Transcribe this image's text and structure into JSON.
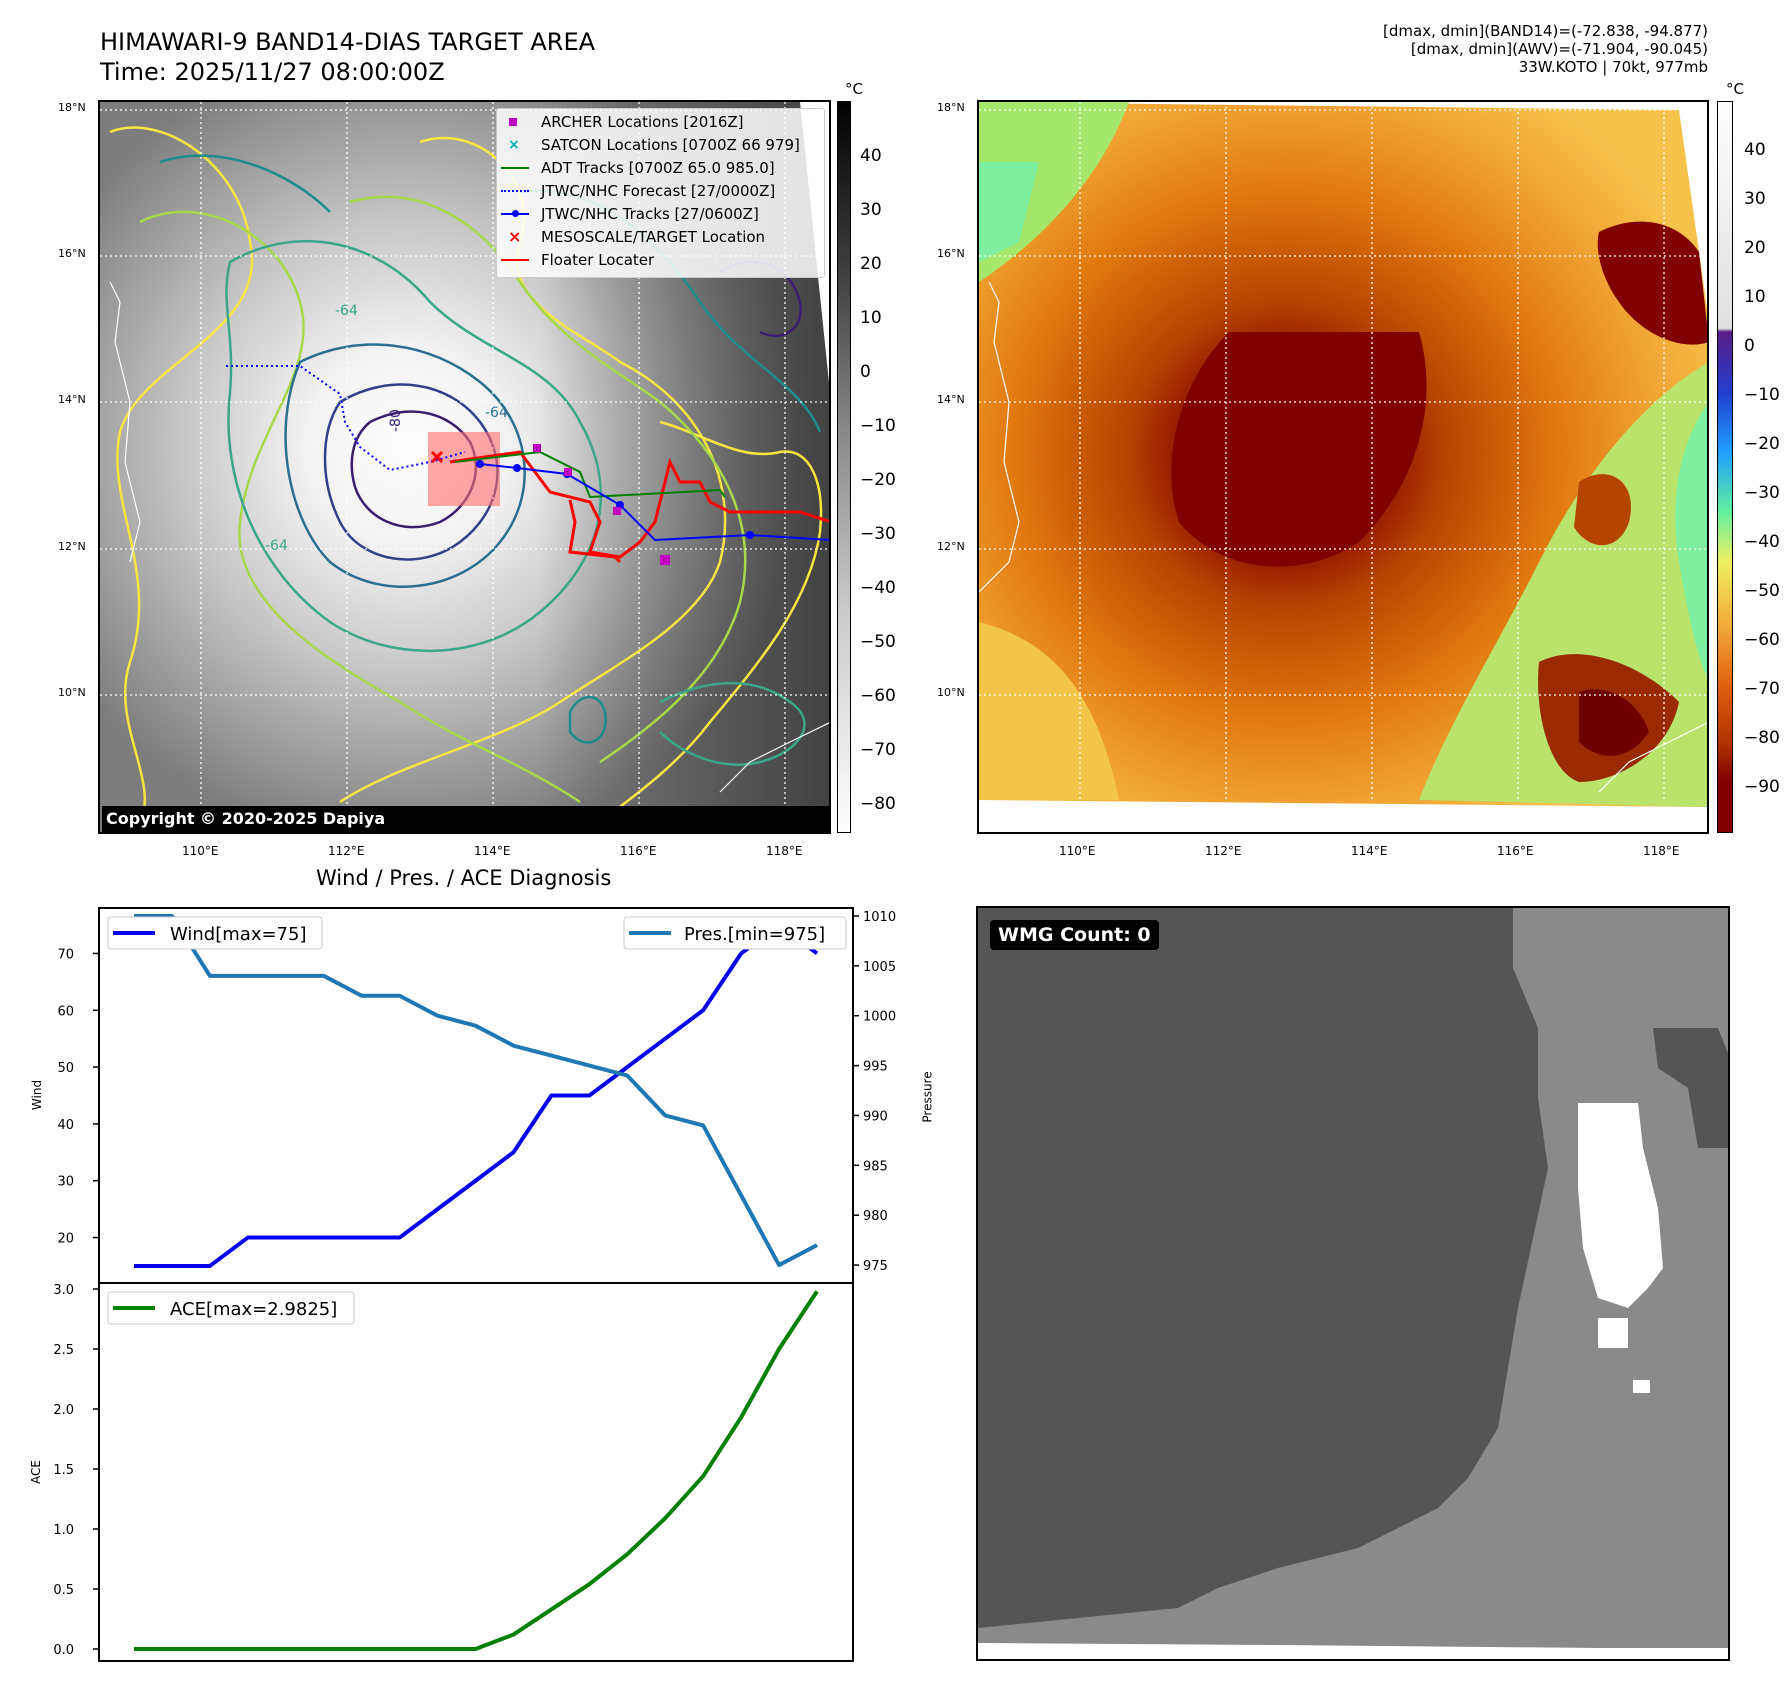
{
  "header": {
    "title_line1": "HIMAWARI-9 BAND14-DIAS TARGET AREA",
    "title_line2": "Time: 2025/11/27 08:00:00Z",
    "info_line1": "[dmax, dmin](BAND14)=(-72.838, -94.877)",
    "info_line2": "[dmax, dmin](AWV)=(-71.904, -90.045)",
    "info_line3": "33W.KOTO | 70kt, 977mb"
  },
  "map": {
    "lat_labels": [
      "18°N",
      "16°N",
      "14°N",
      "12°N",
      "10°N"
    ],
    "lon_labels": [
      "110°E",
      "112°E",
      "114°E",
      "116°E",
      "118°E"
    ],
    "copyright": "Copyright © 2020-2025 Dapiya",
    "contour_labels": [
      "-64",
      "-64",
      "-64",
      "-80"
    ],
    "legend": [
      {
        "label": "ARCHER Locations [2016Z]",
        "marker": "square",
        "color": "#c000c0"
      },
      {
        "label": "SATCON Locations [0700Z 66 979]",
        "marker": "x",
        "color": "#00b0b0"
      },
      {
        "label": "ADT Tracks [0700Z 65.0 985.0]",
        "marker": "line",
        "color": "#008000"
      },
      {
        "label": "JTWC/NHC Forecast [27/0000Z]",
        "marker": "dotted",
        "color": "#0000ff"
      },
      {
        "label": "JTWC/NHC Tracks [27/0600Z]",
        "marker": "line-dot",
        "color": "#0000ff"
      },
      {
        "label": "MESOSCALE/TARGET Location",
        "marker": "x",
        "color": "#ff0000"
      },
      {
        "label": "Floater Locater",
        "marker": "line",
        "color": "#ff0000"
      }
    ]
  },
  "colorbar_gray": {
    "unit": "°C",
    "ticks": [
      "40",
      "30",
      "20",
      "10",
      "0",
      "−10",
      "−20",
      "−30",
      "−40",
      "−50",
      "−60",
      "−70",
      "−80"
    ]
  },
  "colorbar_color": {
    "unit": "°C",
    "ticks": [
      "40",
      "30",
      "20",
      "10",
      "0",
      "−10",
      "−20",
      "−30",
      "−40",
      "−50",
      "−60",
      "−70",
      "−80",
      "−90"
    ]
  },
  "diagnosis_title": "Wind / Pres. / ACE Diagnosis",
  "chart_data": [
    {
      "type": "line",
      "title": "Wind / Pres. / ACE Diagnosis",
      "ylabel": "Wind",
      "ylabel_right": "Pressure",
      "ylim": [
        12,
        78
      ],
      "ylim_right": [
        973.2,
        1010.8
      ],
      "yticks": [
        20,
        30,
        40,
        50,
        60,
        70
      ],
      "yticks_right": [
        975,
        980,
        985,
        990,
        995,
        1000,
        1005,
        1010
      ],
      "x": [
        0,
        1,
        2,
        3,
        4,
        5,
        6,
        7,
        8,
        9,
        10,
        11,
        12,
        13,
        14,
        15,
        16,
        17,
        18
      ],
      "series": [
        {
          "name": "Wind[max=75]",
          "axis": "left",
          "color": "#0000ee",
          "values": [
            15,
            15,
            15,
            20,
            20,
            20,
            20,
            20,
            25,
            30,
            35,
            45,
            45,
            50,
            55,
            60,
            70,
            75,
            70
          ]
        },
        {
          "name": "Pres.[min=975]",
          "axis": "right",
          "color": "#1f77b4",
          "values": [
            1010,
            1010,
            1004,
            1004,
            1004,
            1004,
            1002,
            1002,
            1000,
            999,
            997,
            996,
            995,
            994,
            990,
            989,
            982,
            975,
            977
          ]
        }
      ]
    },
    {
      "type": "line",
      "ylabel": "ACE",
      "ylim": [
        -0.1,
        3.05
      ],
      "yticks": [
        0.0,
        0.5,
        1.0,
        1.5,
        2.0,
        2.5,
        3.0
      ],
      "x": [
        0,
        1,
        2,
        3,
        4,
        5,
        6,
        7,
        8,
        9,
        10,
        11,
        12,
        13,
        14,
        15,
        16,
        17,
        18
      ],
      "series": [
        {
          "name": "ACE[max=2.9825]",
          "color": "#008000",
          "values": [
            0,
            0,
            0,
            0,
            0,
            0,
            0,
            0,
            0,
            0,
            0.12,
            0.33,
            0.54,
            0.79,
            1.09,
            1.44,
            1.93,
            2.5,
            2.98
          ]
        }
      ]
    }
  ],
  "wmg": {
    "label": "WMG Count: 0"
  }
}
